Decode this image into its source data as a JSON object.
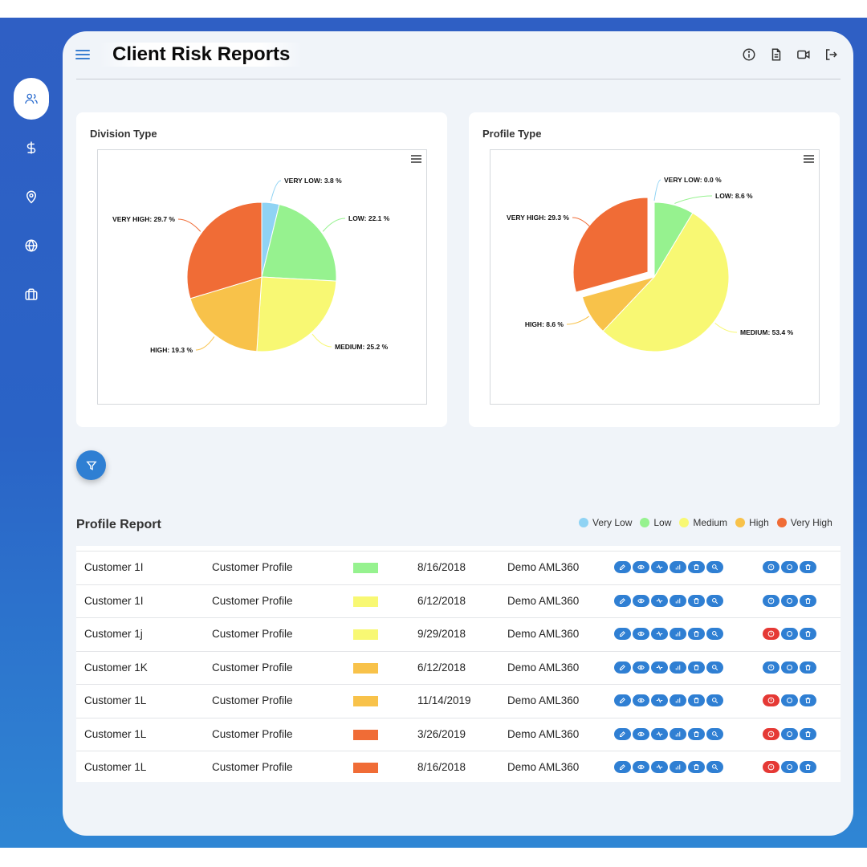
{
  "header": {
    "title": "Client Risk Reports"
  },
  "sidebar": {
    "items": [
      {
        "icon": "users-icon",
        "active": true
      },
      {
        "icon": "dollar-icon",
        "active": false
      },
      {
        "icon": "location-pin-icon",
        "active": false
      },
      {
        "icon": "globe-icon",
        "active": false
      },
      {
        "icon": "briefcase-icon",
        "active": false
      }
    ]
  },
  "header_actions": [
    "info-icon",
    "document-icon",
    "video-icon",
    "logout-icon"
  ],
  "charts": {
    "division": {
      "title": "Division Type"
    },
    "profile": {
      "title": "Profile Type"
    }
  },
  "chart_data": [
    {
      "type": "pie",
      "title": "Division Type",
      "slices": [
        {
          "label": "VERY LOW: 3.8 %",
          "value": 3.8,
          "color": "#8fd3f4"
        },
        {
          "label": "LOW: 22.1 %",
          "value": 22.1,
          "color": "#96f28f"
        },
        {
          "label": "MEDIUM: 25.2 %",
          "value": 25.2,
          "color": "#f8f873"
        },
        {
          "label": "HIGH: 19.3 %",
          "value": 19.3,
          "color": "#f8c24a"
        },
        {
          "label": "VERY HIGH: 29.7 %",
          "value": 29.7,
          "color": "#f06c36"
        }
      ]
    },
    {
      "type": "pie",
      "title": "Profile Type",
      "slices": [
        {
          "label": "VERY LOW: 0.0 %",
          "value": 0.0,
          "color": "#8fd3f4"
        },
        {
          "label": "LOW: 8.6 %",
          "value": 8.6,
          "color": "#96f28f"
        },
        {
          "label": "MEDIUM: 53.4 %",
          "value": 53.4,
          "color": "#f8f873"
        },
        {
          "label": "HIGH: 8.6 %",
          "value": 8.6,
          "color": "#f8c24a"
        },
        {
          "label": "VERY HIGH: 29.3 %",
          "value": 29.3,
          "color": "#f06c36",
          "exploded": true
        }
      ]
    }
  ],
  "report": {
    "title": "Profile Report",
    "legend": [
      {
        "label": "Very Low",
        "color": "#8fd3f4"
      },
      {
        "label": "Low",
        "color": "#96f28f"
      },
      {
        "label": "Medium",
        "color": "#f8f873"
      },
      {
        "label": "High",
        "color": "#f8c24a"
      },
      {
        "label": "Very High",
        "color": "#f06c36"
      }
    ],
    "rows": [
      {
        "customer": "Customer 1I",
        "profile": "Customer Profile",
        "risk_color": "#96f28f",
        "date": "8/16/2018",
        "org": "Demo AML360",
        "alert": false
      },
      {
        "customer": "Customer 1I",
        "profile": "Customer Profile",
        "risk_color": "#f8f873",
        "date": "6/12/2018",
        "org": "Demo AML360",
        "alert": false
      },
      {
        "customer": "Customer 1j",
        "profile": "Customer Profile",
        "risk_color": "#f8f873",
        "date": "9/29/2018",
        "org": "Demo AML360",
        "alert": true
      },
      {
        "customer": "Customer 1K",
        "profile": "Customer Profile",
        "risk_color": "#f8c24a",
        "date": "6/12/2018",
        "org": "Demo AML360",
        "alert": false
      },
      {
        "customer": "Customer 1L",
        "profile": "Customer Profile",
        "risk_color": "#f8c24a",
        "date": "11/14/2019",
        "org": "Demo AML360",
        "alert": true
      },
      {
        "customer": "Customer 1L",
        "profile": "Customer Profile",
        "risk_color": "#f06c36",
        "date": "3/26/2019",
        "org": "Demo AML360",
        "alert": true
      },
      {
        "customer": "Customer 1L",
        "profile": "Customer Profile",
        "risk_color": "#f06c36",
        "date": "8/16/2018",
        "org": "Demo AML360",
        "alert": true
      }
    ],
    "row_actions": [
      "edit-icon",
      "view-icon",
      "activity-icon",
      "bar-chart-icon",
      "delete-icon",
      "search-icon"
    ],
    "row_status_actions": [
      "alert-icon",
      "circle-icon",
      "delete-icon"
    ]
  }
}
